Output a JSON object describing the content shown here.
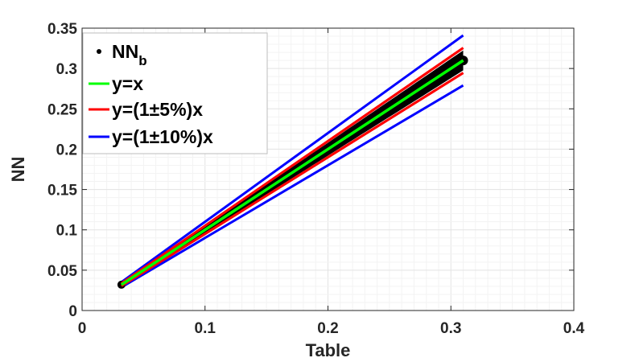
{
  "chart_data": {
    "type": "scatter",
    "xlabel": "Table",
    "ylabel": "NN",
    "xlim": [
      0,
      0.4
    ],
    "ylim": [
      0,
      0.35
    ],
    "x_ticks": [
      "0",
      "0.1",
      "0.2",
      "0.3",
      "0.4"
    ],
    "y_ticks": [
      "0",
      "0.05",
      "0.1",
      "0.15",
      "0.2",
      "0.25",
      "0.3",
      "0.35"
    ],
    "grid": true,
    "legend_position": "top-left",
    "scatter": {
      "name": "NN_b",
      "color": "#000000",
      "x_range": [
        0.032,
        0.31
      ],
      "points": [
        {
          "x": 0.032,
          "y": 0.033
        },
        {
          "x": 0.05,
          "y": 0.05
        },
        {
          "x": 0.1,
          "y": 0.1
        },
        {
          "x": 0.15,
          "y": 0.15
        },
        {
          "x": 0.2,
          "y": 0.2
        },
        {
          "x": 0.25,
          "y": 0.25
        },
        {
          "x": 0.31,
          "y": 0.31
        }
      ],
      "relative_spread": 0.04
    },
    "lines": [
      {
        "name": "y=x",
        "color": "#00ff00",
        "factors": [
          1.0
        ],
        "x": [
          0.032,
          0.31
        ]
      },
      {
        "name": "y=(1±5%)x",
        "color": "#ff0000",
        "factors": [
          1.05,
          0.95
        ],
        "x": [
          0.032,
          0.31
        ]
      },
      {
        "name": "y=(1±10%)x",
        "color": "#0000ff",
        "factors": [
          1.1,
          0.9
        ],
        "x": [
          0.032,
          0.31
        ]
      }
    ],
    "legend": [
      {
        "label_main": "NN",
        "label_sub": "b",
        "marker": "dot",
        "color": "#000000"
      },
      {
        "label_main": "y=x",
        "label_sub": "",
        "marker": "line",
        "color": "#00ff00"
      },
      {
        "label_main": "y=(1±5%)x",
        "label_sub": "",
        "marker": "line",
        "color": "#ff0000"
      },
      {
        "label_main": "y=(1±10%)x",
        "label_sub": "",
        "marker": "line",
        "color": "#0000ff"
      }
    ]
  }
}
